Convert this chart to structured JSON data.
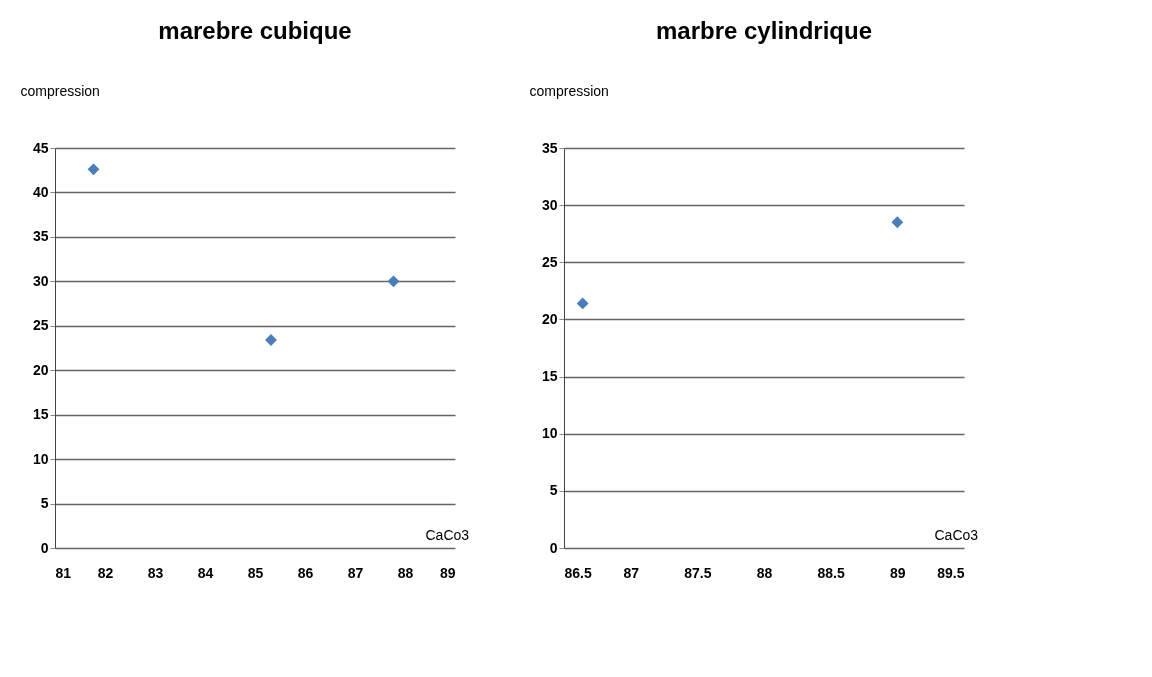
{
  "chart_data": [
    {
      "type": "scatter",
      "title": "marebre cubique",
      "xlabel": "CaCo3",
      "ylabel": "compression",
      "x": [
        81.77,
        85.32,
        87.77
      ],
      "series": [
        {
          "color": "#4a7ebb",
          "values": [
            42.6,
            23.4,
            30
          ]
        }
      ],
      "xlim": [
        81,
        89
      ],
      "xticks": [
        81,
        82,
        83,
        84,
        85,
        86,
        87,
        88,
        89
      ],
      "ylim": [
        0,
        45
      ],
      "yticks": [
        0,
        5,
        10,
        15,
        20,
        25,
        30,
        35,
        40,
        45
      ],
      "grid": "y",
      "marker": "diamond"
    },
    {
      "type": "scatter",
      "title": "marbre cylindrique",
      "xlabel": "CaCo3",
      "ylabel": "compression",
      "x": [
        86.64,
        89.0
      ],
      "series": [
        {
          "color": "#4a7ebb",
          "values": [
            21.4,
            28.5
          ]
        }
      ],
      "xlim": [
        86.5,
        89.5
      ],
      "xticks": [
        86.5,
        87,
        87.5,
        88,
        88.5,
        89,
        89.5
      ],
      "ylim": [
        0,
        35
      ],
      "yticks": [
        0,
        5,
        10,
        15,
        20,
        25,
        30,
        35
      ],
      "grid": "y",
      "marker": "diamond"
    }
  ]
}
